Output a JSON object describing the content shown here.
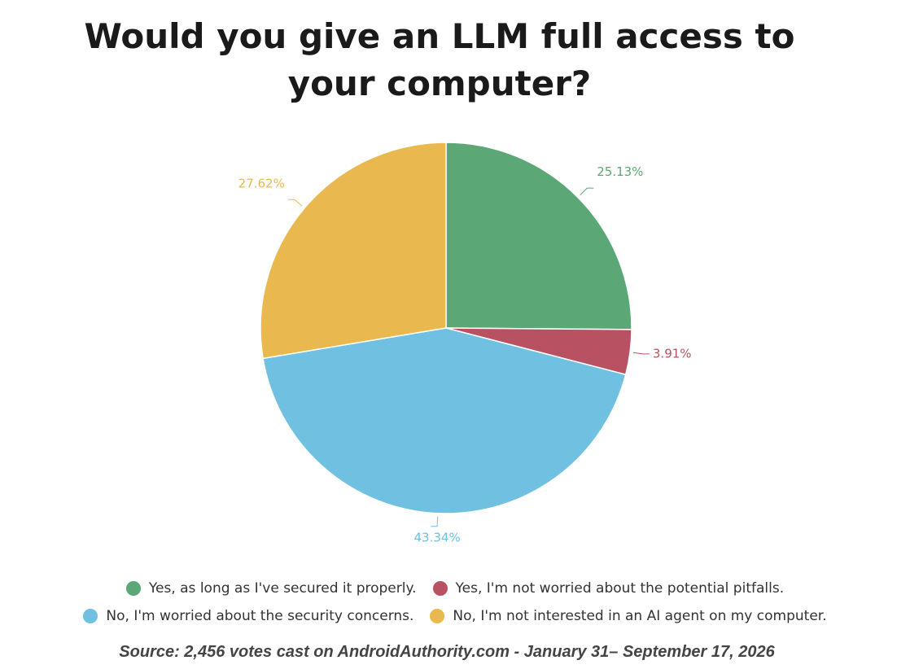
{
  "chart_data": {
    "type": "pie",
    "title": "Would you give an LLM full access to your computer?",
    "categories": [
      "Yes, as long as I've secured it properly.",
      "Yes, I'm not worried about the potential pitfalls.",
      "No, I'm worried about the security concerns.",
      "No, I'm not interested in an AI agent on my computer."
    ],
    "values": [
      25.13,
      3.91,
      43.34,
      27.62
    ],
    "value_labels": [
      "25.13%",
      "3.91%",
      "43.34%",
      "27.62%"
    ],
    "colors": [
      "#5ba775",
      "#b85262",
      "#70c0e1",
      "#e9b950"
    ],
    "source": "Source: 2,456 votes cast on AndroidAuthority.com - January 31– September 17, 2026"
  }
}
